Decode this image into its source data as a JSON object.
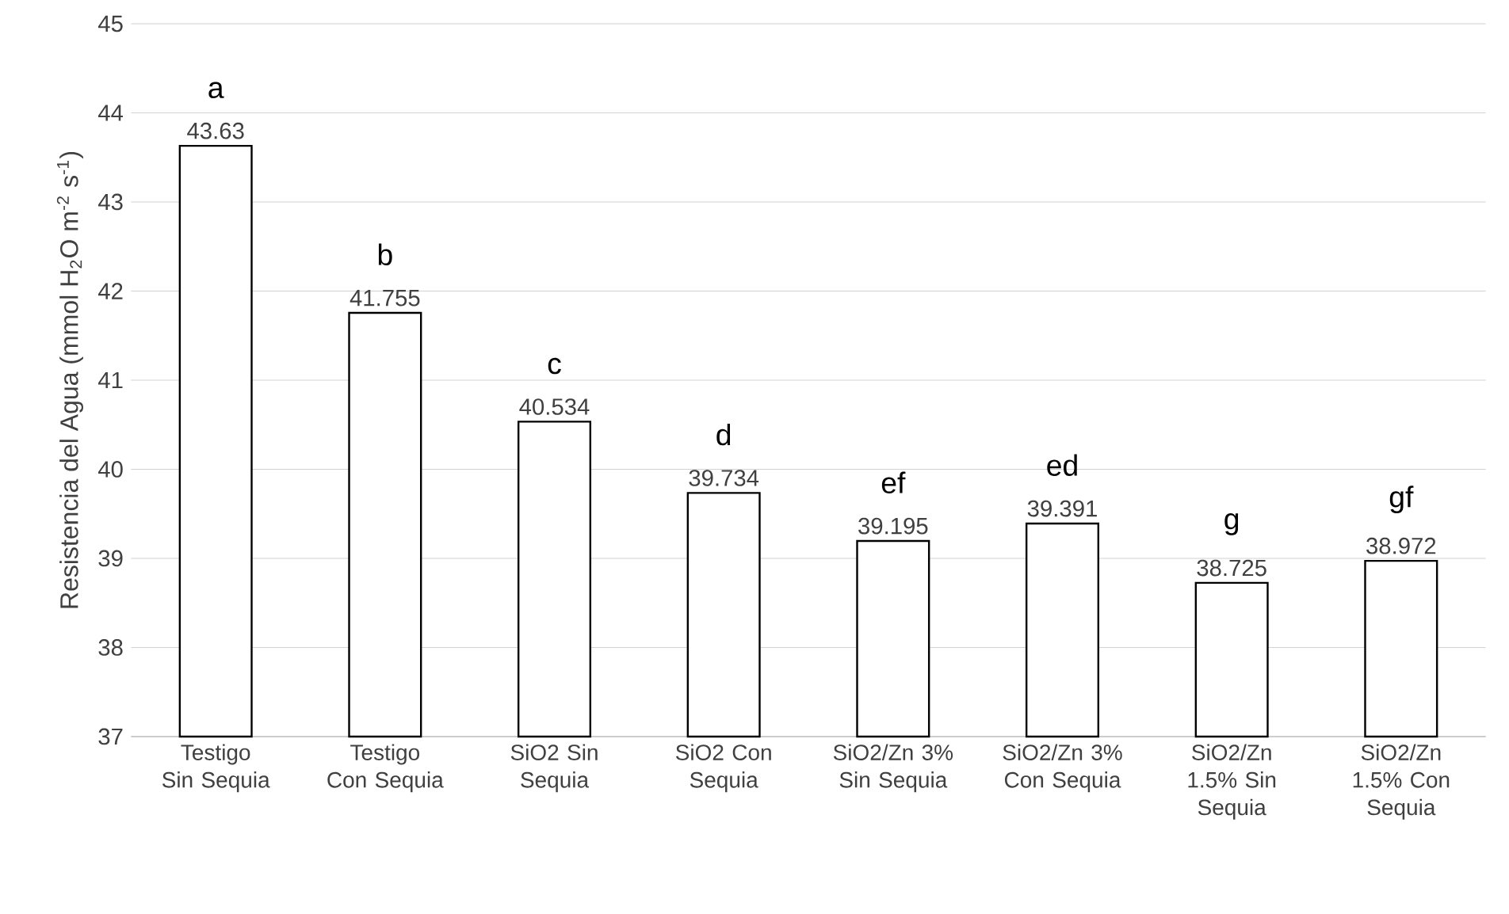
{
  "chart_data": {
    "type": "bar",
    "ylabel": "Resistencia del Agua (mmol H$_{2}$O m$^{-2}$ s$^{-1}$)",
    "categories": [
      "Testigo Sin Sequia",
      "Testigo Con Sequia",
      "SiO2 Sin Sequia",
      "SiO2 Con Sequia",
      "SiO2/Zn 3% Sin Sequia",
      "SiO2/Zn 3% Con Sequia",
      "SiO2/Zn 1.5% Sin Sequia",
      "SiO2/Zn 1.5% Con Sequia"
    ],
    "values": [
      43.63,
      41.755,
      40.534,
      39.734,
      39.195,
      39.391,
      38.725,
      38.972
    ],
    "color": "#ffffff",
    "data_labels": true,
    "grid": "y",
    "ylim": [
      37,
      45
    ],
    "yticks": [
      37,
      38,
      39,
      40,
      41,
      42,
      43,
      44,
      45
    ],
    "annotations": [
      {
        "text": "a",
        "x": "Testigo Sin Sequia",
        "y": 43.63
      },
      {
        "text": "b",
        "x": "Testigo Con Sequia",
        "y": 41.755
      },
      {
        "text": "c",
        "x": "SiO2 Sin Sequia",
        "y": 40.534
      },
      {
        "text": "d",
        "x": "SiO2 Con Sequia",
        "y": 39.734
      },
      {
        "text": "ef",
        "x": "SiO2/Zn 3% Sin Sequia",
        "y": 39.195
      },
      {
        "text": "ed",
        "x": "SiO2/Zn 3% Con Sequia",
        "y": 39.391
      },
      {
        "text": "g",
        "x": "SiO2/Zn 1.5% Sin Sequia",
        "y": 38.725
      },
      {
        "text": "gf",
        "x": "SiO2/Zn 1.5% Con Sequia",
        "y": 38.972
      }
    ]
  }
}
